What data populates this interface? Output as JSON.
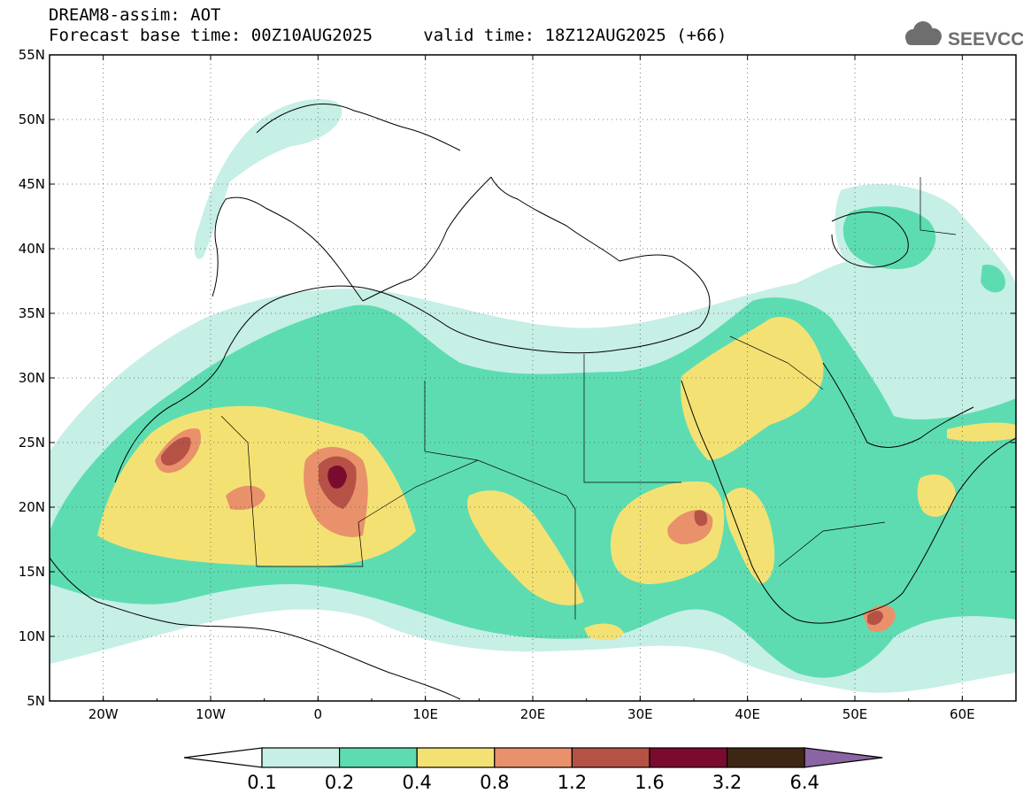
{
  "header": {
    "title": "DREAM8-assim: AOT",
    "base_time": "Forecast base time: 00Z10AUG2025",
    "valid_time": "valid time: 18Z12AUG2025 (+66)"
  },
  "logo": {
    "text": "SEEVCCC",
    "icon": "cloud-icon"
  },
  "map": {
    "lat_labels": [
      "55N",
      "50N",
      "45N",
      "40N",
      "35N",
      "30N",
      "25N",
      "20N",
      "15N",
      "10N",
      "5N"
    ],
    "lon_labels": [
      "20W",
      "10W",
      "0",
      "10E",
      "20E",
      "30E",
      "40E",
      "50E",
      "60E"
    ],
    "extent": {
      "lon": [
        -25,
        65
      ],
      "lat": [
        5,
        55
      ]
    }
  },
  "colorbar": {
    "levels": [
      "0.1",
      "0.2",
      "0.4",
      "0.8",
      "1.2",
      "1.6",
      "3.2",
      "6.4"
    ],
    "colors": [
      "#ffffff",
      "#c6efe6",
      "#5ddcb2",
      "#f3e273",
      "#e9916b",
      "#b55245",
      "#7a0b2e",
      "#3d2613",
      "#8b64a3"
    ]
  }
}
